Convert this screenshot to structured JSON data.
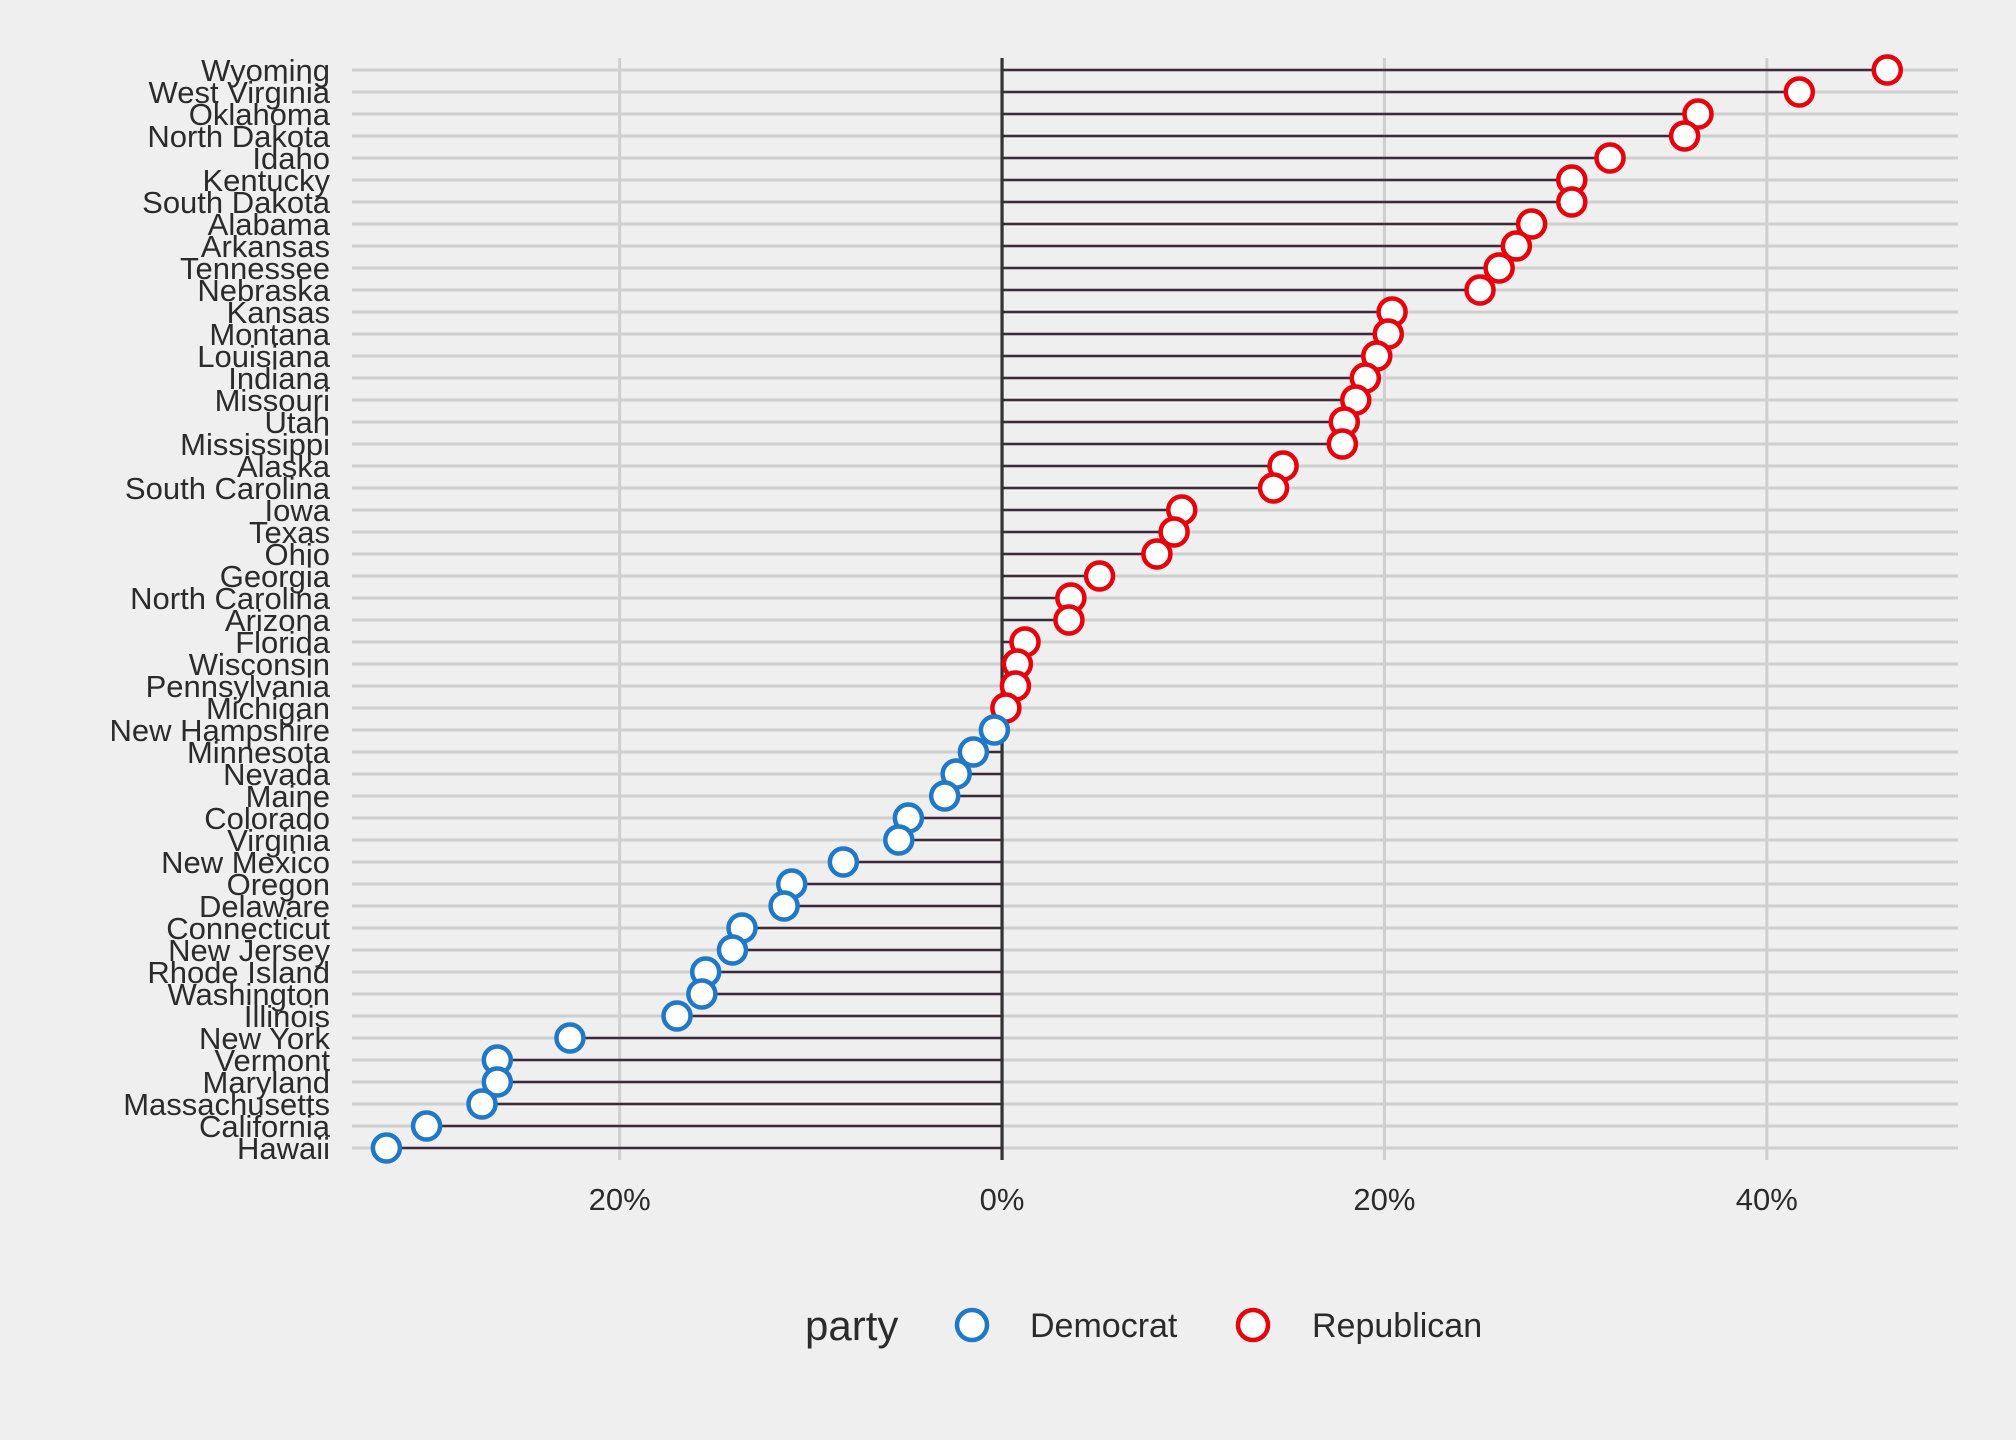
{
  "chart_data": {
    "type": "dot-lollipop",
    "title": "",
    "xlabel": "",
    "ylabel": "",
    "xlim": [
      -0.34,
      0.5
    ],
    "x_ticks": [
      {
        "value": -0.2,
        "label": "20%"
      },
      {
        "value": 0.0,
        "label": "0%"
      },
      {
        "value": 0.2,
        "label": "20%"
      },
      {
        "value": 0.4,
        "label": "40%"
      }
    ],
    "grid": true,
    "legend": {
      "title": "party",
      "position": "bottom",
      "entries": [
        {
          "name": "Democrat",
          "color": "#1f78c8"
        },
        {
          "name": "Republican",
          "color": "#e8000b"
        }
      ]
    },
    "colors": {
      "Democrat": "#1f78c8",
      "Republican": "#e8000b",
      "segment": "#3d2b3d",
      "zero_line": "#333333",
      "grid": "#cfcfcf"
    },
    "points": [
      {
        "state": "Wyoming",
        "value": 0.463,
        "party": "Republican"
      },
      {
        "state": "West Virginia",
        "value": 0.417,
        "party": "Republican"
      },
      {
        "state": "Oklahoma",
        "value": 0.364,
        "party": "Republican"
      },
      {
        "state": "North Dakota",
        "value": 0.357,
        "party": "Republican"
      },
      {
        "state": "Idaho",
        "value": 0.318,
        "party": "Republican"
      },
      {
        "state": "Kentucky",
        "value": 0.298,
        "party": "Republican"
      },
      {
        "state": "South Dakota",
        "value": 0.298,
        "party": "Republican"
      },
      {
        "state": "Alabama",
        "value": 0.277,
        "party": "Republican"
      },
      {
        "state": "Arkansas",
        "value": 0.269,
        "party": "Republican"
      },
      {
        "state": "Tennessee",
        "value": 0.26,
        "party": "Republican"
      },
      {
        "state": "Nebraska",
        "value": 0.25,
        "party": "Republican"
      },
      {
        "state": "Kansas",
        "value": 0.204,
        "party": "Republican"
      },
      {
        "state": "Montana",
        "value": 0.202,
        "party": "Republican"
      },
      {
        "state": "Louisiana",
        "value": 0.196,
        "party": "Republican"
      },
      {
        "state": "Indiana",
        "value": 0.19,
        "party": "Republican"
      },
      {
        "state": "Missouri",
        "value": 0.185,
        "party": "Republican"
      },
      {
        "state": "Utah",
        "value": 0.179,
        "party": "Republican"
      },
      {
        "state": "Mississippi",
        "value": 0.178,
        "party": "Republican"
      },
      {
        "state": "Alaska",
        "value": 0.147,
        "party": "Republican"
      },
      {
        "state": "South Carolina",
        "value": 0.142,
        "party": "Republican"
      },
      {
        "state": "Iowa",
        "value": 0.094,
        "party": "Republican"
      },
      {
        "state": "Texas",
        "value": 0.09,
        "party": "Republican"
      },
      {
        "state": "Ohio",
        "value": 0.081,
        "party": "Republican"
      },
      {
        "state": "Georgia",
        "value": 0.051,
        "party": "Republican"
      },
      {
        "state": "North Carolina",
        "value": 0.036,
        "party": "Republican"
      },
      {
        "state": "Arizona",
        "value": 0.035,
        "party": "Republican"
      },
      {
        "state": "Florida",
        "value": 0.012,
        "party": "Republican"
      },
      {
        "state": "Wisconsin",
        "value": 0.008,
        "party": "Republican"
      },
      {
        "state": "Pennsylvania",
        "value": 0.007,
        "party": "Republican"
      },
      {
        "state": "Michigan",
        "value": 0.002,
        "party": "Republican"
      },
      {
        "state": "New Hampshire",
        "value": -0.004,
        "party": "Democrat"
      },
      {
        "state": "Minnesota",
        "value": -0.015,
        "party": "Democrat"
      },
      {
        "state": "Nevada",
        "value": -0.024,
        "party": "Democrat"
      },
      {
        "state": "Maine",
        "value": -0.03,
        "party": "Democrat"
      },
      {
        "state": "Colorado",
        "value": -0.049,
        "party": "Democrat"
      },
      {
        "state": "Virginia",
        "value": -0.054,
        "party": "Democrat"
      },
      {
        "state": "New Mexico",
        "value": -0.083,
        "party": "Democrat"
      },
      {
        "state": "Oregon",
        "value": -0.11,
        "party": "Democrat"
      },
      {
        "state": "Delaware",
        "value": -0.114,
        "party": "Democrat"
      },
      {
        "state": "Connecticut",
        "value": -0.136,
        "party": "Democrat"
      },
      {
        "state": "New Jersey",
        "value": -0.141,
        "party": "Democrat"
      },
      {
        "state": "Rhode Island",
        "value": -0.155,
        "party": "Democrat"
      },
      {
        "state": "Washington",
        "value": -0.157,
        "party": "Democrat"
      },
      {
        "state": "Illinois",
        "value": -0.17,
        "party": "Democrat"
      },
      {
        "state": "New York",
        "value": -0.226,
        "party": "Democrat"
      },
      {
        "state": "Vermont",
        "value": -0.264,
        "party": "Democrat"
      },
      {
        "state": "Maryland",
        "value": -0.264,
        "party": "Democrat"
      },
      {
        "state": "Massachusetts",
        "value": -0.272,
        "party": "Democrat"
      },
      {
        "state": "California",
        "value": -0.301,
        "party": "Democrat"
      },
      {
        "state": "Hawaii",
        "value": -0.322,
        "party": "Democrat"
      }
    ]
  }
}
